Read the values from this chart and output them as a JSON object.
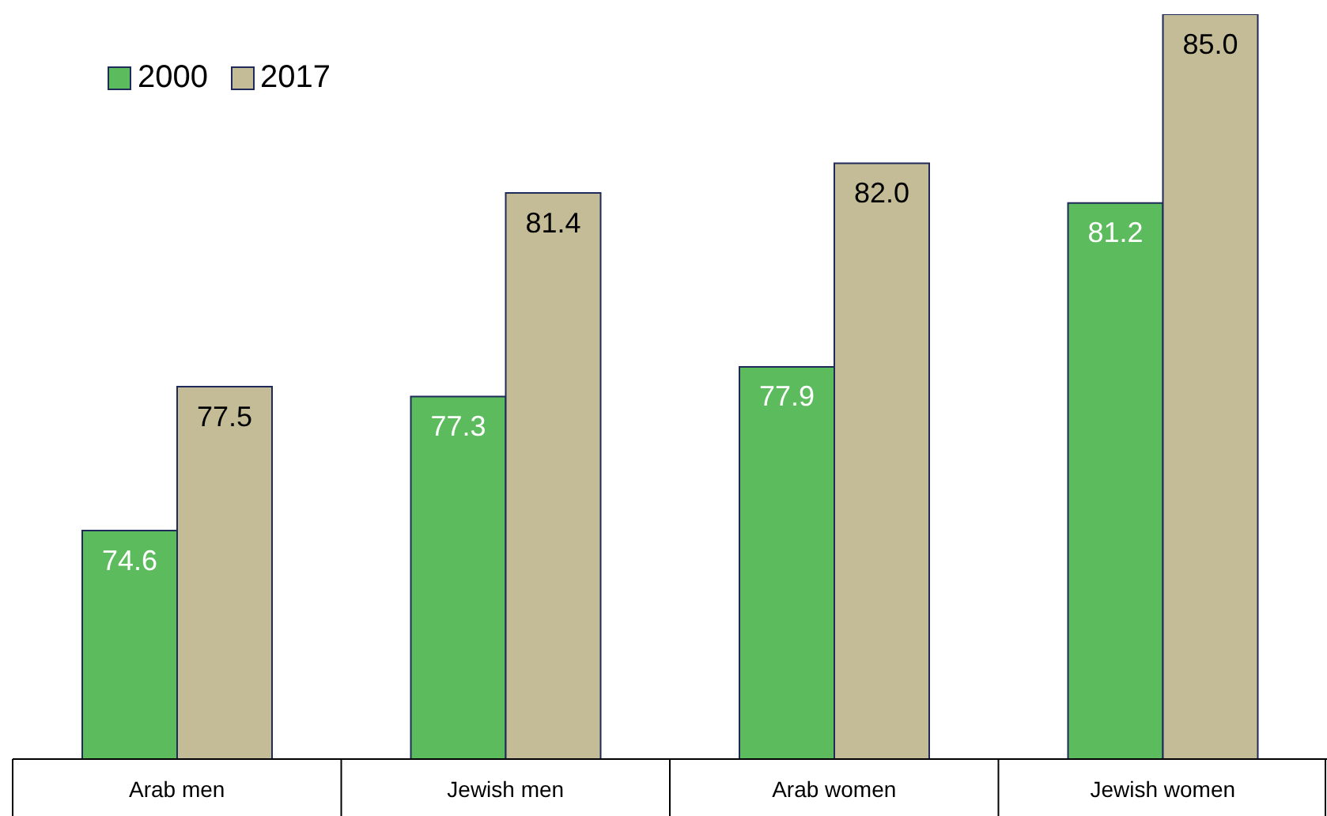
{
  "chart_data": {
    "type": "bar",
    "categories": [
      "Arab men",
      "Jewish men",
      "Arab women",
      "Jewish women"
    ],
    "series": [
      {
        "name": "2000",
        "color": "#5cbb5c",
        "values": [
          74.6,
          77.3,
          77.9,
          81.2
        ],
        "value_labels": [
          "74.6",
          "77.3",
          "77.9",
          "81.2"
        ]
      },
      {
        "name": "2017",
        "color": "#c4bc96",
        "values": [
          77.5,
          81.4,
          82.0,
          85.0
        ],
        "value_labels": [
          "77.5",
          "81.4",
          "82.0",
          "85.0"
        ]
      }
    ],
    "ylim": [
      70,
      85
    ],
    "legend": "top left"
  }
}
